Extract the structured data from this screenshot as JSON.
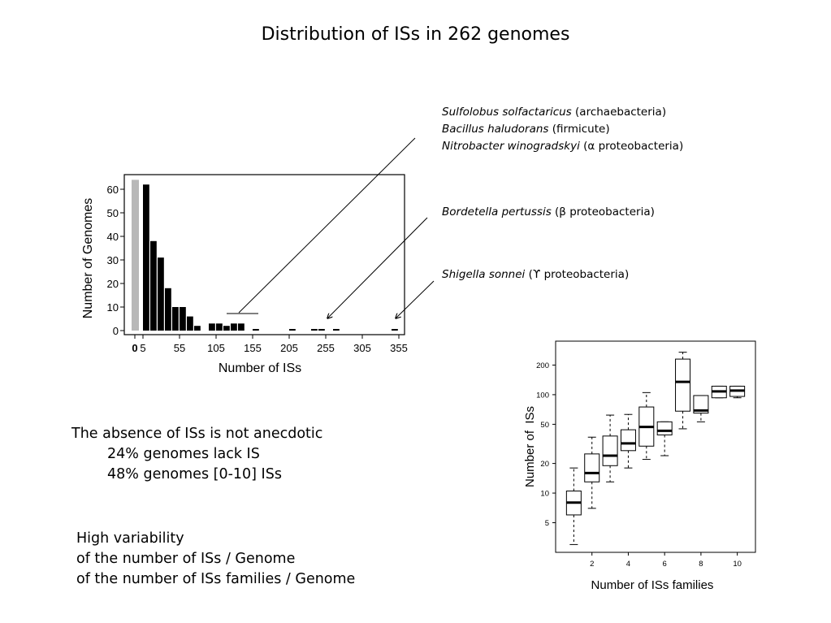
{
  "slide": {
    "title": "Distribution of ISs in 262 genomes",
    "annotations": [
      {
        "lines": [
          {
            "species": "Sulfolobus solfactaricus",
            "group": " (archaebacteria)"
          },
          {
            "species": "Bacillus haludorans",
            "group": " (firmicute)"
          },
          {
            "species": "Nitrobacter winogradskyi",
            "group": " (α proteobacteria)"
          }
        ]
      },
      {
        "lines": [
          {
            "species": "Bordetella pertussis",
            "group": " (β proteobacteria)"
          }
        ]
      },
      {
        "lines": [
          {
            "species": "Shigella sonnei",
            "group": " (ϒ proteobacteria)"
          }
        ]
      }
    ],
    "text_block_1": {
      "heading": "The absence of ISs is not anecdotic",
      "lines": [
        "24% genomes lack IS",
        "48% genomes [0-10] ISs"
      ]
    },
    "text_block_2": {
      "lines": [
        "High variability",
        "of the number of ISs / Genome",
        "of the number of ISs families / Genome"
      ]
    }
  },
  "chart_data": [
    {
      "type": "bar",
      "xlabel": "Number of ISs",
      "ylabel": "Number of Genomes",
      "x_ticks": [
        "0",
        "5",
        "55",
        "105",
        "155",
        "205",
        "255",
        "305",
        "355"
      ],
      "y_ticks": [
        "0",
        "10",
        "20",
        "30",
        "40",
        "50",
        "60"
      ],
      "ylim": [
        0,
        65
      ],
      "zero_bar": {
        "category": "0",
        "value": 64,
        "color": "#b8b8b8"
      },
      "bin_start": 5,
      "bin_width": 10,
      "values": [
        62,
        38,
        31,
        18,
        10,
        10,
        6,
        2,
        0,
        3,
        3,
        2,
        3,
        3,
        0,
        0.5,
        0,
        0,
        0,
        0,
        0.5,
        0,
        0,
        0.5,
        0.5,
        0,
        0.5,
        0,
        0,
        0,
        0,
        0,
        0,
        0,
        0.5
      ],
      "bar_color": "#000000"
    },
    {
      "type": "boxplot",
      "xlabel": "Number of ISs families",
      "ylabel": "Number of  ISs",
      "yscale": "log",
      "ylim": [
        2.5,
        350
      ],
      "xlim": [
        0,
        11
      ],
      "x_ticks": [
        "2",
        "4",
        "6",
        "8",
        "10"
      ],
      "y_ticks": [
        "5",
        "10",
        "20",
        "50",
        "100",
        "200"
      ],
      "boxes": [
        {
          "x": 1,
          "whisker_low": 3,
          "q1": 6,
          "median": 8,
          "q3": 10.5,
          "whisker_high": 18
        },
        {
          "x": 2,
          "whisker_low": 7,
          "q1": 13,
          "median": 16,
          "q3": 25,
          "whisker_high": 37
        },
        {
          "x": 3,
          "whisker_low": 13,
          "q1": 19,
          "median": 24,
          "q3": 38,
          "whisker_high": 62
        },
        {
          "x": 4,
          "whisker_low": 18,
          "q1": 27,
          "median": 32,
          "q3": 44,
          "whisker_high": 63
        },
        {
          "x": 5,
          "whisker_low": 22,
          "q1": 30,
          "median": 47,
          "q3": 75,
          "whisker_high": 105
        },
        {
          "x": 6,
          "whisker_low": 24,
          "q1": 39,
          "median": 43,
          "q3": 53,
          "whisker_high": 53
        },
        {
          "x": 7,
          "whisker_low": 45,
          "q1": 68,
          "median": 135,
          "q3": 230,
          "whisker_high": 270
        },
        {
          "x": 8,
          "whisker_low": 53,
          "q1": 65,
          "median": 69,
          "q3": 98,
          "whisker_high": 98
        },
        {
          "x": 9,
          "whisker_low": 93,
          "q1": 93,
          "median": 108,
          "q3": 122,
          "whisker_high": 122
        },
        {
          "x": 10,
          "whisker_low": 93,
          "q1": 96,
          "median": 110,
          "q3": 122,
          "whisker_high": 122
        }
      ]
    }
  ]
}
